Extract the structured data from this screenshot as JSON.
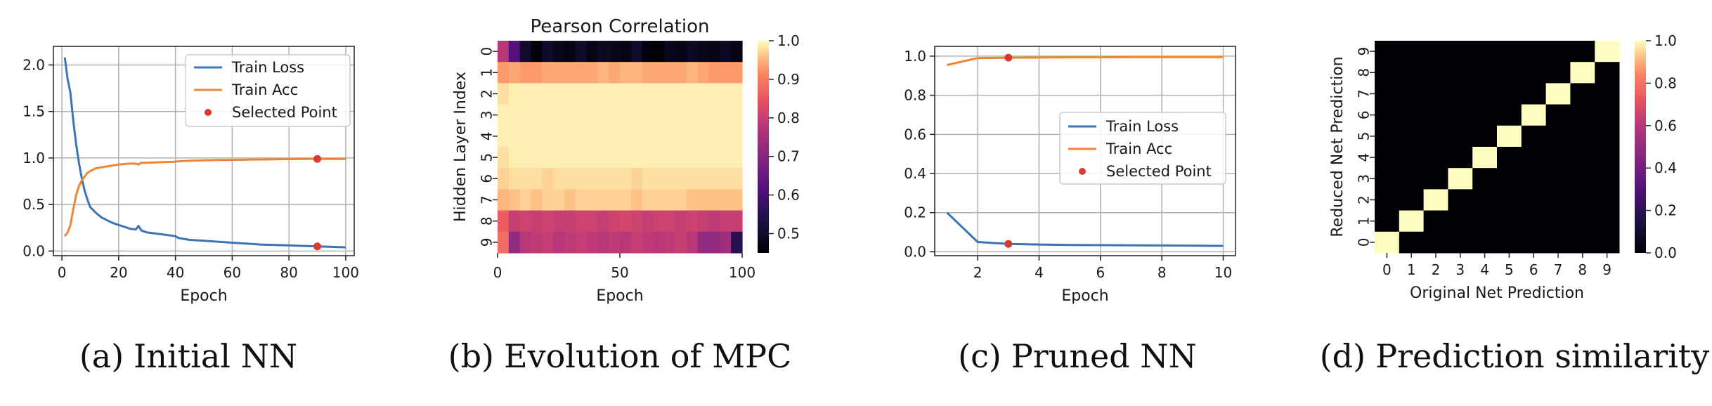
{
  "colors": {
    "loss": "#3a75b5",
    "acc": "#ee8635",
    "point": "#d93c2e",
    "grid": "#b0b0b0"
  },
  "chart_data": [
    {
      "id": "a",
      "type": "line",
      "caption_label": "(a)",
      "caption_text": "Initial NN",
      "xlabel": "Epoch",
      "ylabel": "",
      "xlim": [
        -3,
        103
      ],
      "ylim": [
        -0.05,
        2.2
      ],
      "xticks": [
        0,
        20,
        40,
        60,
        80,
        100
      ],
      "yticks": [
        0.0,
        0.5,
        1.0,
        1.5,
        2.0
      ],
      "ytick_labels": [
        "0.0",
        "0.5",
        "1.0",
        "1.5",
        "2.0"
      ],
      "grid": true,
      "legend": {
        "position": "top-right",
        "entries": [
          "Train Loss",
          "Train Acc",
          "Selected Point"
        ]
      },
      "series": [
        {
          "name": "Train Loss",
          "color_key": "loss",
          "x": [
            1,
            2,
            3,
            4,
            5,
            6,
            7,
            8,
            9,
            10,
            12,
            14,
            16,
            18,
            20,
            22,
            24,
            26,
            27,
            28,
            30,
            35,
            40,
            41,
            45,
            50,
            55,
            60,
            65,
            70,
            75,
            80,
            85,
            90,
            95,
            100
          ],
          "y": [
            2.08,
            1.85,
            1.7,
            1.4,
            1.15,
            0.95,
            0.78,
            0.65,
            0.55,
            0.47,
            0.41,
            0.36,
            0.33,
            0.3,
            0.28,
            0.26,
            0.24,
            0.23,
            0.27,
            0.22,
            0.2,
            0.18,
            0.16,
            0.14,
            0.12,
            0.11,
            0.1,
            0.09,
            0.08,
            0.07,
            0.065,
            0.06,
            0.055,
            0.05,
            0.045,
            0.04
          ]
        },
        {
          "name": "Train Acc",
          "color_key": "acc",
          "x": [
            1,
            2,
            3,
            4,
            5,
            6,
            7,
            8,
            9,
            10,
            12,
            14,
            16,
            18,
            20,
            22,
            24,
            26,
            27,
            28,
            30,
            35,
            40,
            41,
            45,
            50,
            55,
            60,
            65,
            70,
            75,
            80,
            85,
            90,
            95,
            100
          ],
          "y": [
            0.16,
            0.2,
            0.28,
            0.45,
            0.6,
            0.7,
            0.76,
            0.8,
            0.84,
            0.86,
            0.89,
            0.9,
            0.91,
            0.92,
            0.93,
            0.935,
            0.94,
            0.94,
            0.93,
            0.95,
            0.95,
            0.955,
            0.96,
            0.965,
            0.97,
            0.975,
            0.978,
            0.98,
            0.982,
            0.984,
            0.986,
            0.988,
            0.99,
            0.99,
            0.99,
            0.99
          ]
        }
      ],
      "points": [
        {
          "name": "Selected Point",
          "x": 90,
          "y": 0.99
        },
        {
          "name": "Selected Point",
          "x": 90,
          "y": 0.05
        }
      ]
    },
    {
      "id": "b",
      "type": "heatmap",
      "caption_label": "(b)",
      "caption_text": "Evolution of MPC",
      "title": "Pearson Correlation",
      "xlabel": "Epoch",
      "ylabel": "Hidden Layer Index",
      "xticks": [
        0,
        50,
        100
      ],
      "yticks": [
        "0",
        "1",
        "2",
        "3",
        "4",
        "5",
        "6",
        "7",
        "8",
        "9"
      ],
      "vmin": 0.45,
      "vmax": 1.0,
      "colorbar_ticks": [
        "0.5",
        "0.6",
        "0.7",
        "0.8",
        "0.9",
        "1.0"
      ],
      "colorbar_values": [
        0.5,
        0.6,
        0.7,
        0.8,
        0.9,
        1.0
      ],
      "epoch_max": 100,
      "n_cols": 22,
      "rows": [
        [
          0.78,
          0.62,
          0.5,
          0.46,
          0.5,
          0.48,
          0.47,
          0.5,
          0.47,
          0.49,
          0.48,
          0.47,
          0.5,
          0.46,
          0.43,
          0.48,
          0.47,
          0.49,
          0.48,
          0.47,
          0.49,
          0.47
        ],
        [
          0.93,
          0.94,
          0.93,
          0.93,
          0.94,
          0.94,
          0.94,
          0.94,
          0.94,
          0.95,
          0.94,
          0.95,
          0.95,
          0.94,
          0.94,
          0.94,
          0.94,
          0.95,
          0.94,
          0.93,
          0.93,
          0.93
        ],
        [
          0.98,
          0.99,
          0.99,
          0.99,
          0.99,
          0.99,
          0.99,
          0.99,
          0.99,
          0.99,
          0.99,
          0.99,
          0.99,
          0.99,
          0.99,
          0.99,
          0.99,
          0.99,
          0.99,
          0.99,
          0.99,
          0.99
        ],
        [
          0.99,
          0.99,
          0.99,
          0.99,
          0.99,
          0.99,
          0.99,
          0.99,
          0.99,
          0.99,
          0.99,
          0.99,
          0.99,
          0.99,
          0.99,
          0.99,
          0.99,
          0.99,
          0.99,
          0.99,
          0.99,
          0.99
        ],
        [
          0.99,
          0.99,
          0.99,
          0.99,
          0.99,
          0.99,
          0.99,
          0.99,
          0.99,
          0.99,
          0.99,
          0.99,
          0.99,
          0.99,
          0.99,
          0.99,
          0.99,
          0.99,
          0.99,
          0.99,
          0.99,
          0.99
        ],
        [
          0.98,
          0.99,
          0.99,
          0.99,
          0.99,
          0.99,
          0.99,
          0.99,
          0.99,
          0.99,
          0.99,
          0.99,
          0.99,
          0.99,
          0.99,
          0.99,
          0.99,
          0.99,
          0.99,
          0.99,
          0.99,
          0.99
        ],
        [
          0.97,
          0.98,
          0.98,
          0.98,
          0.97,
          0.98,
          0.98,
          0.98,
          0.98,
          0.98,
          0.98,
          0.98,
          0.97,
          0.98,
          0.98,
          0.98,
          0.98,
          0.98,
          0.98,
          0.98,
          0.98,
          0.98
        ],
        [
          0.95,
          0.96,
          0.97,
          0.96,
          0.97,
          0.97,
          0.96,
          0.97,
          0.97,
          0.97,
          0.97,
          0.97,
          0.96,
          0.97,
          0.97,
          0.97,
          0.97,
          0.96,
          0.96,
          0.96,
          0.96,
          0.96
        ],
        [
          0.86,
          0.8,
          0.81,
          0.8,
          0.81,
          0.8,
          0.8,
          0.81,
          0.81,
          0.8,
          0.81,
          0.82,
          0.81,
          0.8,
          0.81,
          0.81,
          0.8,
          0.81,
          0.8,
          0.79,
          0.8,
          0.8
        ],
        [
          0.88,
          0.72,
          0.78,
          0.79,
          0.8,
          0.78,
          0.79,
          0.8,
          0.79,
          0.78,
          0.79,
          0.78,
          0.8,
          0.79,
          0.78,
          0.79,
          0.8,
          0.78,
          0.72,
          0.72,
          0.74,
          0.55
        ]
      ]
    },
    {
      "id": "c",
      "type": "line",
      "caption_label": "(c)",
      "caption_text": "Pruned NN",
      "xlabel": "Epoch",
      "ylabel": "",
      "xlim": [
        0.6,
        10.4
      ],
      "ylim": [
        -0.02,
        1.05
      ],
      "xticks": [
        2,
        4,
        6,
        8,
        10
      ],
      "yticks": [
        0.0,
        0.2,
        0.4,
        0.6,
        0.8,
        1.0
      ],
      "ytick_labels": [
        "0.0",
        "0.2",
        "0.4",
        "0.6",
        "0.8",
        "1.0"
      ],
      "grid": true,
      "legend": {
        "position": "center-right",
        "entries": [
          "Train Loss",
          "Train Acc",
          "Selected Point"
        ]
      },
      "series": [
        {
          "name": "Train Loss",
          "color_key": "loss",
          "x": [
            1,
            2,
            3,
            4,
            5,
            6,
            7,
            8,
            9,
            10
          ],
          "y": [
            0.2,
            0.05,
            0.04,
            0.037,
            0.035,
            0.034,
            0.033,
            0.032,
            0.031,
            0.03
          ]
        },
        {
          "name": "Train Acc",
          "color_key": "acc",
          "x": [
            1,
            2,
            3,
            4,
            5,
            6,
            7,
            8,
            9,
            10
          ],
          "y": [
            0.955,
            0.99,
            0.992,
            0.993,
            0.994,
            0.994,
            0.995,
            0.995,
            0.995,
            0.995
          ]
        }
      ],
      "points": [
        {
          "name": "Selected Point",
          "x": 3,
          "y": 0.992
        },
        {
          "name": "Selected Point",
          "x": 3,
          "y": 0.04
        }
      ]
    },
    {
      "id": "d",
      "type": "heatmap",
      "caption_label": "(d)",
      "caption_text": "Prediction similarity",
      "xlabel": "Original Net Prediction",
      "ylabel": "Reduced Net Prediction",
      "xticks": [
        "0",
        "1",
        "2",
        "3",
        "4",
        "5",
        "6",
        "7",
        "8",
        "9"
      ],
      "yticks": [
        "0",
        "1",
        "2",
        "3",
        "4",
        "5",
        "6",
        "7",
        "8",
        "9"
      ],
      "vmin": 0.0,
      "vmax": 1.0,
      "colorbar_ticks": [
        "0.0",
        "0.2",
        "0.4",
        "0.6",
        "0.8",
        "1.0"
      ],
      "colorbar_values": [
        0.0,
        0.2,
        0.4,
        0.6,
        0.8,
        1.0
      ],
      "diagonal_value": 1.0,
      "offdiagonal_value": 0.0
    }
  ]
}
